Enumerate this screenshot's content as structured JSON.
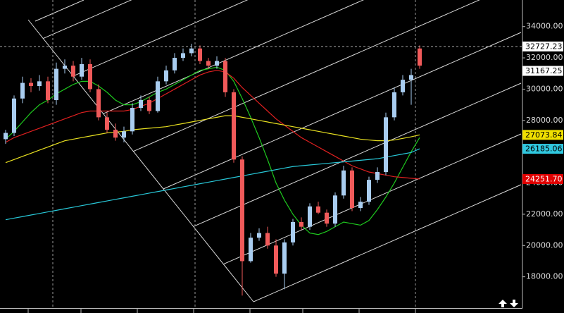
{
  "chart_data": {
    "type": "candlestick",
    "ylim": [
      16000,
      35700
    ],
    "yticks": [
      {
        "value": 18000,
        "label": "18000.00"
      },
      {
        "value": 20000,
        "label": "20000.00"
      },
      {
        "value": 22000,
        "label": "22000.00"
      },
      {
        "value": 24000,
        "label": "24000.00"
      },
      {
        "value": 26000,
        "label": "26000.00"
      },
      {
        "value": 28000,
        "label": "28000.00"
      },
      {
        "value": 30000,
        "label": "30000.00"
      },
      {
        "value": 32000,
        "label": "32000.00"
      },
      {
        "value": 34000,
        "label": "34000.00"
      }
    ],
    "up_color": "#a9cdf0",
    "down_color": "#f05a5a",
    "open": [
      26800,
      27200,
      29400,
      30400,
      30200,
      30500,
      29300,
      31300,
      31500,
      30800,
      31600,
      30000,
      28200,
      27400,
      26900,
      27300,
      28800,
      29300,
      28600,
      30500,
      31200,
      32000,
      32300,
      32600,
      31800,
      31500,
      31800,
      29800,
      25500,
      19000,
      20500,
      20800,
      20000,
      18200,
      20200,
      21500,
      21200,
      22500,
      22100,
      21400,
      23200,
      24800,
      22400,
      22800,
      24200,
      24700,
      28200,
      29800,
      30600,
      32600
    ],
    "high": [
      27400,
      29600,
      30800,
      30700,
      30900,
      30800,
      31700,
      31900,
      31800,
      32000,
      31900,
      30300,
      28500,
      27800,
      27600,
      29100,
      29600,
      29500,
      30800,
      31500,
      32300,
      32600,
      32900,
      32800,
      32000,
      32100,
      32000,
      30000,
      25700,
      20800,
      21100,
      21200,
      20400,
      20400,
      21700,
      21800,
      22700,
      22800,
      22300,
      23400,
      25100,
      25000,
      23100,
      24400,
      25000,
      28500,
      30100,
      30900,
      31300,
      32800
    ],
    "low": [
      26500,
      27000,
      29100,
      29800,
      29900,
      29100,
      29000,
      31000,
      30500,
      30600,
      29800,
      28000,
      27200,
      26700,
      26600,
      27100,
      28600,
      28400,
      28500,
      30300,
      31000,
      31800,
      32100,
      31600,
      31300,
      31300,
      29500,
      25300,
      16800,
      18900,
      20300,
      19800,
      18000,
      17200,
      20000,
      21000,
      21000,
      22000,
      21200,
      21200,
      23000,
      22200,
      22200,
      22600,
      24000,
      24500,
      28000,
      29600,
      29000,
      31300
    ],
    "close": [
      27200,
      29400,
      30400,
      30200,
      30500,
      29300,
      31300,
      31500,
      30800,
      31600,
      30000,
      28200,
      27400,
      26900,
      27300,
      28800,
      29300,
      28600,
      30500,
      31200,
      32000,
      32300,
      32600,
      31800,
      31500,
      31800,
      29800,
      25500,
      19000,
      20500,
      20800,
      20000,
      18200,
      20200,
      21500,
      21200,
      22500,
      22100,
      21400,
      23200,
      24800,
      22400,
      22800,
      24200,
      24700,
      28200,
      29800,
      30600,
      30900,
      31500
    ],
    "series": [
      {
        "color": "#1ec81e",
        "values": [
          26800,
          27300,
          27900,
          28500,
          29000,
          29300,
          29700,
          30000,
          30300,
          30500,
          30500,
          30200,
          29800,
          29300,
          29000,
          29000,
          29200,
          29500,
          29800,
          30000,
          30300,
          30600,
          30900,
          31200,
          31300,
          31400,
          31200,
          30500,
          29400,
          28200,
          26900,
          25500,
          24000,
          22900,
          22000,
          21300,
          20800,
          20700,
          20900,
          21200,
          21500,
          21400,
          21300,
          21600,
          22300,
          23100,
          24000,
          25000,
          26000,
          26900
        ]
      },
      {
        "color": "#e02020",
        "values": [
          26600,
          26900,
          27100,
          27300,
          27500,
          27700,
          27900,
          28100,
          28300,
          28500,
          28600,
          28600,
          28600,
          28600,
          28600,
          28700,
          28900,
          29100,
          29400,
          29700,
          30000,
          30300,
          30600,
          30900,
          31100,
          31200,
          31100,
          30700,
          30100,
          29600,
          29100,
          28600,
          28100,
          27700,
          27300,
          26900,
          26600,
          26300,
          26000,
          25700,
          25400,
          25100,
          24900,
          24700,
          24600,
          24500,
          24400,
          24350,
          24300,
          24251.7
        ]
      },
      {
        "color": "#e8e020",
        "values": [
          25300,
          25500,
          25700,
          25900,
          26100,
          26300,
          26500,
          26700,
          26800,
          26900,
          27000,
          27100,
          27200,
          27250,
          27300,
          27400,
          27450,
          27500,
          27550,
          27600,
          27700,
          27800,
          27900,
          28000,
          28100,
          28200,
          28300,
          28300,
          28200,
          28100,
          28000,
          27900,
          27800,
          27700,
          27600,
          27500,
          27400,
          27300,
          27200,
          27100,
          27000,
          26900,
          26800,
          26750,
          26700,
          26700,
          26750,
          26850,
          26950,
          27073.84
        ]
      },
      {
        "color": "#28c8d8",
        "values": [
          21650,
          21750,
          21850,
          21950,
          22050,
          22150,
          22250,
          22350,
          22450,
          22550,
          22650,
          22750,
          22850,
          22950,
          23050,
          23150,
          23250,
          23350,
          23450,
          23550,
          23650,
          23750,
          23850,
          23950,
          24050,
          24150,
          24250,
          24350,
          24450,
          24550,
          24650,
          24750,
          24850,
          24950,
          25050,
          25100,
          25150,
          25200,
          25250,
          25300,
          25350,
          25400,
          25450,
          25500,
          25550,
          25650,
          25750,
          25850,
          25950,
          26185.06
        ]
      }
    ],
    "price_markers": [
      {
        "value": 32727.23,
        "color": "#ffffff"
      },
      {
        "value": 31167.25,
        "color": "#ffffff"
      },
      {
        "value": 27073.84,
        "color": "#f0e000"
      },
      {
        "value": 26185.06,
        "color": "#30c8e0"
      },
      {
        "value": 24251.7,
        "label": "24251.70",
        "color": "#e00000"
      }
    ]
  }
}
